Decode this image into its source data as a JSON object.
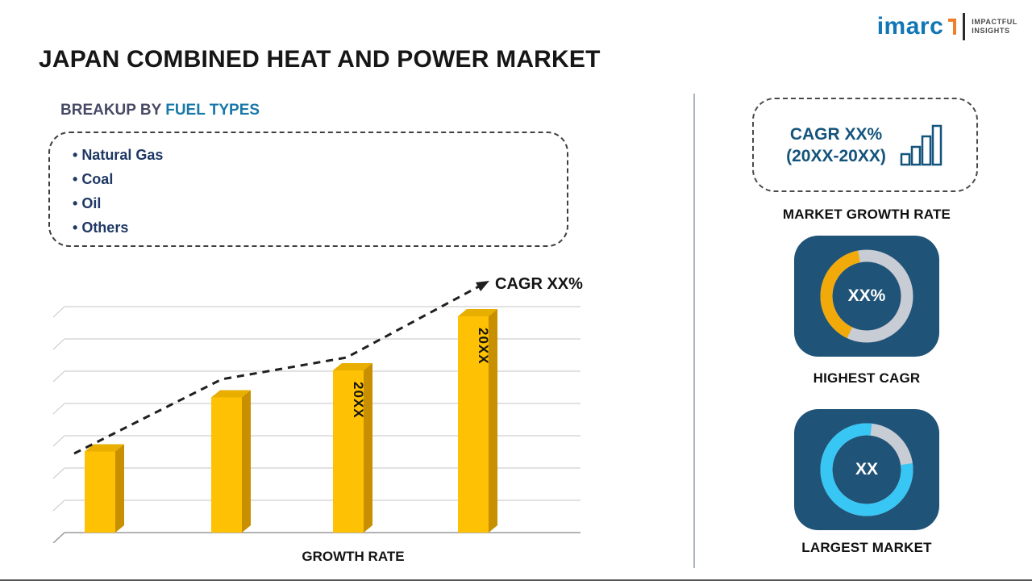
{
  "page": {
    "title": "JAPAN COMBINED HEAT AND POWER MARKET"
  },
  "logo": {
    "brand": "imarc",
    "tagline_line1": "IMPACTFUL",
    "tagline_line2": "INSIGHTS"
  },
  "breakup": {
    "heading_prefix": "BREAKUP BY ",
    "heading_highlight": "FUEL TYPES",
    "items": [
      "Natural Gas",
      "Coal",
      "Oil",
      "Others"
    ]
  },
  "chart_data": {
    "type": "bar",
    "title": "",
    "categories": [
      "",
      "",
      "20XX",
      "20XX"
    ],
    "values": [
      30,
      50,
      60,
      80
    ],
    "bar_labels": [
      "",
      "",
      "20XX",
      "20XX"
    ],
    "xlabel": "GROWTH RATE",
    "ylabel": "",
    "ylim": [
      0,
      100
    ],
    "grid": true,
    "annotation": "CAGR XX%",
    "trend": "dashed-arrow-rising",
    "bar_color": "#FFC103"
  },
  "sidebar": {
    "growth_box": {
      "line1": "CAGR XX%",
      "line2": "(20XX-20XX)"
    },
    "growth_label": "MARKET GROWTH RATE",
    "highest_cagr": {
      "value": "XX%",
      "label": "HIGHEST CAGR",
      "arc_color": "#F2A90A",
      "arc_percent": 40
    },
    "largest_market": {
      "value": "XX",
      "label": "LARGEST MARKET",
      "arc_color": "#38C6F4",
      "arc_percent": 79
    }
  },
  "colors": {
    "accent_blue": "#1878A8",
    "navy": "#1F3864",
    "tile_bg": "#1F5377",
    "bar_gold": "#FFC103",
    "donut_gray": "#C8CCD4",
    "divider": "#ADB5BF"
  }
}
